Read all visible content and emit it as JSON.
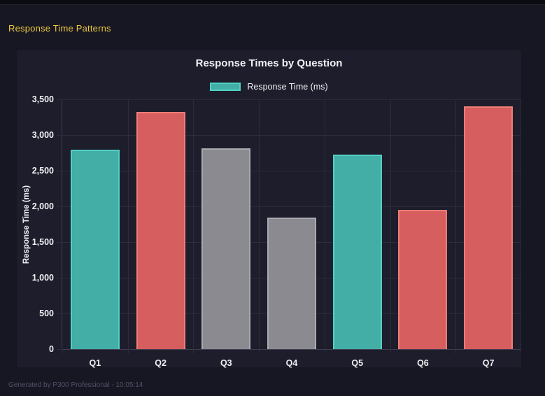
{
  "page": {
    "header": "Response Time Patterns",
    "footer": "Generated by P300 Professional - 10:05:14"
  },
  "colors": {
    "page_bg": "#171723",
    "top_strip": "#0a0a11",
    "card_bg": "#1d1d2b",
    "grid": "#2c2c3c",
    "axis": "#3e3e50",
    "header_yellow": "#eec83d",
    "text": "#f0f0f4",
    "muted": "#51516a",
    "teal_fill": "#42aea6",
    "teal_border": "#52d0c6",
    "red_fill": "#d65e5e",
    "red_border": "#ee7d78",
    "gray_fill": "#8a8a90",
    "gray_border": "#aaaab2"
  },
  "chart_data": {
    "type": "bar",
    "title": "Response Times by Question",
    "legend": [
      {
        "label": "Response Time (ms)",
        "color": "teal"
      }
    ],
    "legend_position": "top",
    "categories": [
      "Q1",
      "Q2",
      "Q3",
      "Q4",
      "Q5",
      "Q6",
      "Q7"
    ],
    "values": [
      2790,
      3320,
      2810,
      1840,
      2725,
      1950,
      3400
    ],
    "bar_colors": [
      "teal",
      "red",
      "gray",
      "gray",
      "teal",
      "red",
      "red"
    ],
    "xlabel": "",
    "ylabel": "Response Time (ms)",
    "ylim": [
      0,
      3500
    ],
    "ytick_step": 500,
    "yticks": [
      "0",
      "500",
      "1,000",
      "1,500",
      "2,000",
      "2,500",
      "3,000",
      "3,500"
    ],
    "grid": true
  }
}
